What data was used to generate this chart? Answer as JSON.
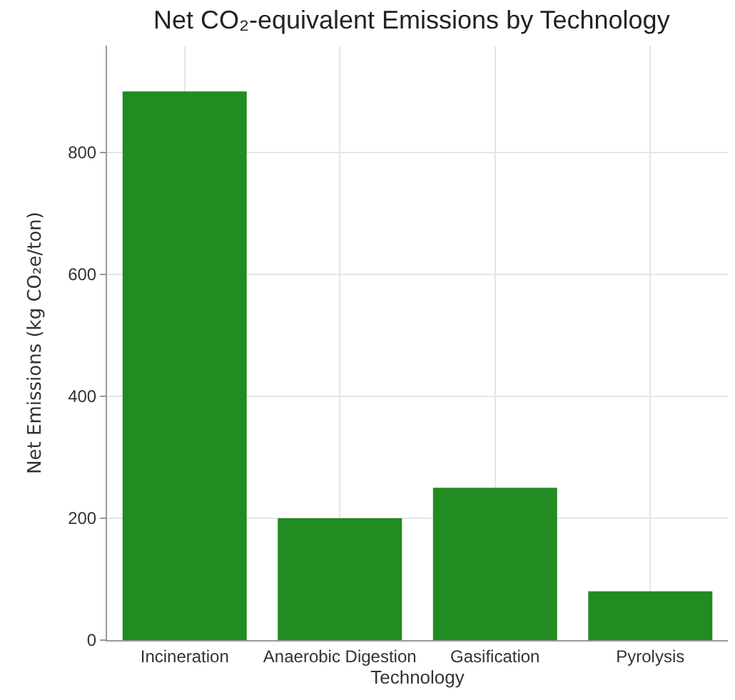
{
  "chart_data": {
    "type": "bar",
    "title": "Net CO₂-equivalent Emissions by Technology",
    "xlabel": "Technology",
    "ylabel": "Net Emissions (kg CO₂e/ton)",
    "categories": [
      "Incineration",
      "Anaerobic Digestion",
      "Gasification",
      "Pyrolysis"
    ],
    "values": [
      900,
      200,
      250,
      80
    ],
    "color": "#228b22",
    "ylim": [
      0,
      975
    ],
    "yticks": [
      0,
      200,
      400,
      600,
      800
    ],
    "grid": true,
    "legend": false
  }
}
